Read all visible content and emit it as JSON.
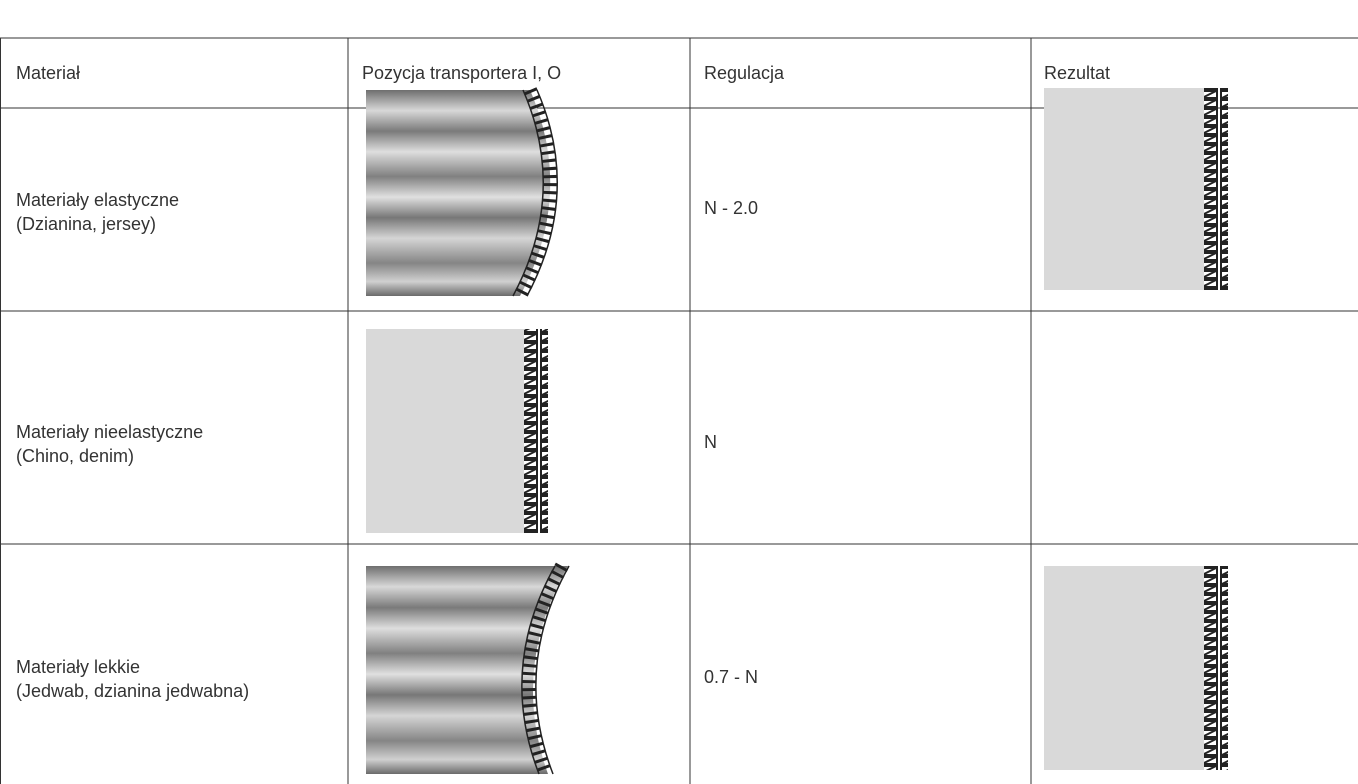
{
  "table": {
    "header": [
      "Materiał",
      "Pozycja transportera I, O",
      "Regulacja",
      "Rezultat"
    ],
    "rows": [
      {
        "material": [
          "Materiały elastyczne",
          "(Dzianina, jersey)"
        ],
        "setting": "N - 2.0"
      },
      {
        "material": [
          "Materiały nieelastyczne",
          "(Chino, denim)"
        ],
        "setting": "N"
      },
      {
        "material": [
          "Materiały lekkie",
          "(Jedwab, dzianina jedwabna)"
        ],
        "setting": "0.7 - N"
      }
    ]
  }
}
